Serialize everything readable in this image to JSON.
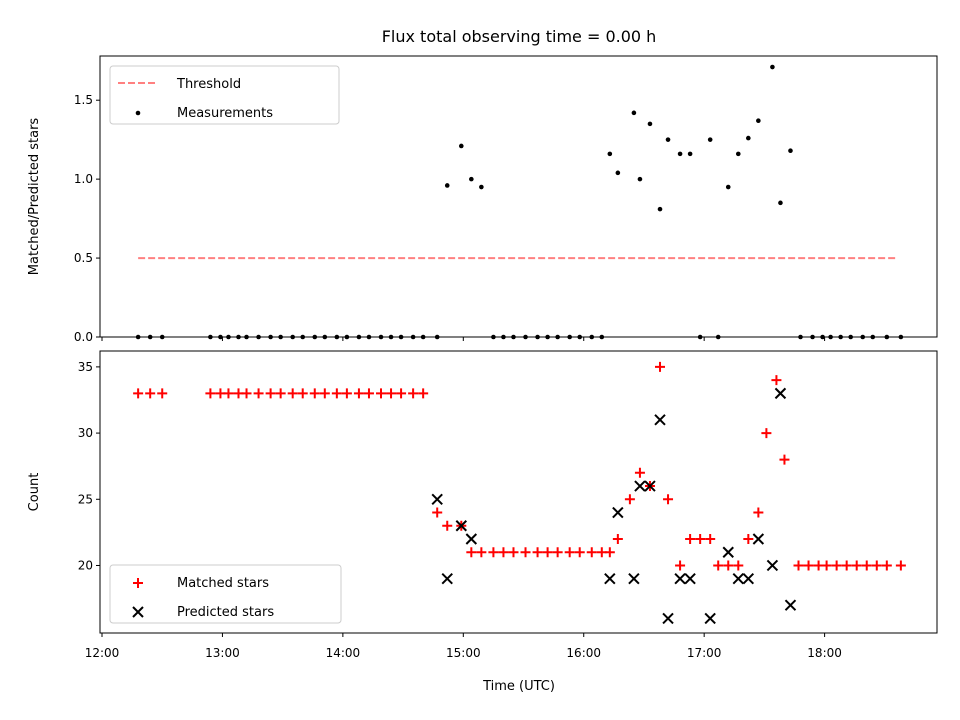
{
  "chart_data": {
    "title": "Flux total observing time = 0.00 h",
    "xlabel": "Time (UTC)",
    "x_tick_labels": [
      "12:00",
      "13:00",
      "14:00",
      "15:00",
      "16:00",
      "17:00",
      "18:00"
    ],
    "x_ticks": [
      "12:00",
      "13:00",
      "14:00",
      "15:00",
      "16:00",
      "17:00",
      "18:00"
    ],
    "xlim": [
      "11:59",
      "18:56"
    ],
    "colors": {
      "threshold": "#ff8080",
      "measurements": "#000000",
      "matched": "#ff0000",
      "predicted": "#000000"
    },
    "panels": [
      {
        "type": "scatter",
        "ylabel": "Matched/Predicted stars",
        "ylim": [
          0,
          1.78
        ],
        "y_ticks": [
          0.0,
          0.5,
          1.0,
          1.5
        ],
        "y_tick_labels": [
          "0.0",
          "0.5",
          "1.0",
          "1.5"
        ],
        "legend": {
          "position": "upper-left",
          "entries": [
            "Threshold",
            "Measurements"
          ]
        },
        "series": [
          {
            "name": "Threshold",
            "kind": "dashed-line",
            "x": [
              "12:18",
              "18:36"
            ],
            "values": [
              0.5,
              0.5
            ]
          },
          {
            "name": "Measurements",
            "kind": "dots",
            "x": [
              "12:18",
              "12:24",
              "12:30",
              "12:54",
              "12:59",
              "13:03",
              "13:08",
              "13:12",
              "13:18",
              "13:24",
              "13:29",
              "13:35",
              "13:40",
              "13:46",
              "13:51",
              "13:57",
              "14:02",
              "14:08",
              "14:13",
              "14:19",
              "14:24",
              "14:29",
              "14:35",
              "14:40",
              "14:47",
              "14:52",
              "14:59",
              "15:04",
              "15:09",
              "15:15",
              "15:20",
              "15:25",
              "15:31",
              "15:37",
              "15:42",
              "15:47",
              "15:53",
              "15:58",
              "16:04",
              "16:09",
              "16:13",
              "16:17",
              "16:25",
              "16:28",
              "16:33",
              "16:38",
              "16:42",
              "16:48",
              "16:53",
              "16:58",
              "17:03",
              "17:07",
              "17:12",
              "17:17",
              "17:22",
              "17:27",
              "17:34",
              "17:38",
              "17:43",
              "17:48",
              "17:54",
              "17:59",
              "18:03",
              "18:08",
              "18:13",
              "18:19",
              "18:24",
              "18:31",
              "18:38"
            ],
            "values": [
              0,
              0,
              0,
              0,
              0,
              0,
              0,
              0,
              0,
              0,
              0,
              0,
              0,
              0,
              0,
              0,
              0,
              0,
              0,
              0,
              0,
              0,
              0,
              0,
              0,
              0.96,
              1.21,
              1.0,
              0.95,
              0,
              0,
              0,
              0,
              0,
              0,
              0,
              0,
              0,
              0,
              0,
              1.16,
              1.04,
              1.42,
              1.0,
              1.35,
              0.81,
              1.25,
              1.16,
              1.16,
              0,
              1.25,
              0,
              0.95,
              1.16,
              1.26,
              1.37,
              1.71,
              0.85,
              1.18,
              0,
              0,
              0,
              0,
              0,
              0,
              0,
              0,
              0,
              0
            ]
          }
        ]
      },
      {
        "type": "scatter",
        "ylabel": "Count",
        "ylim": [
          14.9,
          36.2
        ],
        "y_ticks": [
          20,
          25,
          30,
          35
        ],
        "y_tick_labels": [
          "20",
          "25",
          "30",
          "35"
        ],
        "legend": {
          "position": "lower-left",
          "entries": [
            "Matched stars",
            "Predicted stars"
          ]
        },
        "series": [
          {
            "name": "Matched stars",
            "kind": "plus",
            "x": [
              "12:18",
              "12:24",
              "12:30",
              "12:54",
              "12:59",
              "13:03",
              "13:08",
              "13:12",
              "13:18",
              "13:24",
              "13:29",
              "13:35",
              "13:40",
              "13:46",
              "13:51",
              "13:57",
              "14:02",
              "14:08",
              "14:13",
              "14:19",
              "14:24",
              "14:29",
              "14:35",
              "14:40",
              "14:47",
              "14:52",
              "14:59",
              "15:04",
              "15:09",
              "15:15",
              "15:20",
              "15:25",
              "15:31",
              "15:37",
              "15:42",
              "15:47",
              "15:53",
              "15:58",
              "16:04",
              "16:09",
              "16:13",
              "16:17",
              "16:23",
              "16:28",
              "16:33",
              "16:38",
              "16:42",
              "16:48",
              "16:53",
              "16:58",
              "17:03",
              "17:07",
              "17:12",
              "17:17",
              "17:22",
              "17:27",
              "17:31",
              "17:36",
              "17:40",
              "17:47",
              "17:52",
              "17:57",
              "18:01",
              "18:06",
              "18:11",
              "18:16",
              "18:21",
              "18:26",
              "18:31",
              "18:38"
            ],
            "values": [
              33,
              33,
              33,
              33,
              33,
              33,
              33,
              33,
              33,
              33,
              33,
              33,
              33,
              33,
              33,
              33,
              33,
              33,
              33,
              33,
              33,
              33,
              33,
              33,
              24,
              23,
              23,
              21,
              21,
              21,
              21,
              21,
              21,
              21,
              21,
              21,
              21,
              21,
              21,
              21,
              21,
              22,
              25,
              27,
              26,
              35,
              25,
              20,
              22,
              22,
              22,
              20,
              20,
              20,
              22,
              24,
              30,
              34,
              28,
              20,
              20,
              20,
              20,
              20,
              20,
              20,
              20,
              20,
              20,
              20
            ]
          },
          {
            "name": "Predicted stars",
            "kind": "x-marker",
            "x": [
              "14:47",
              "14:52",
              "14:59",
              "15:04",
              "16:13",
              "16:17",
              "16:25",
              "16:28",
              "16:33",
              "16:38",
              "16:42",
              "16:48",
              "16:53",
              "17:03",
              "17:12",
              "17:17",
              "17:22",
              "17:27",
              "17:34",
              "17:38",
              "17:43"
            ],
            "values": [
              25,
              19,
              23,
              22,
              19,
              24,
              19,
              26,
              26,
              31,
              16,
              19,
              19,
              16,
              21,
              19,
              19,
              22,
              20,
              33,
              17
            ]
          }
        ]
      }
    ]
  }
}
